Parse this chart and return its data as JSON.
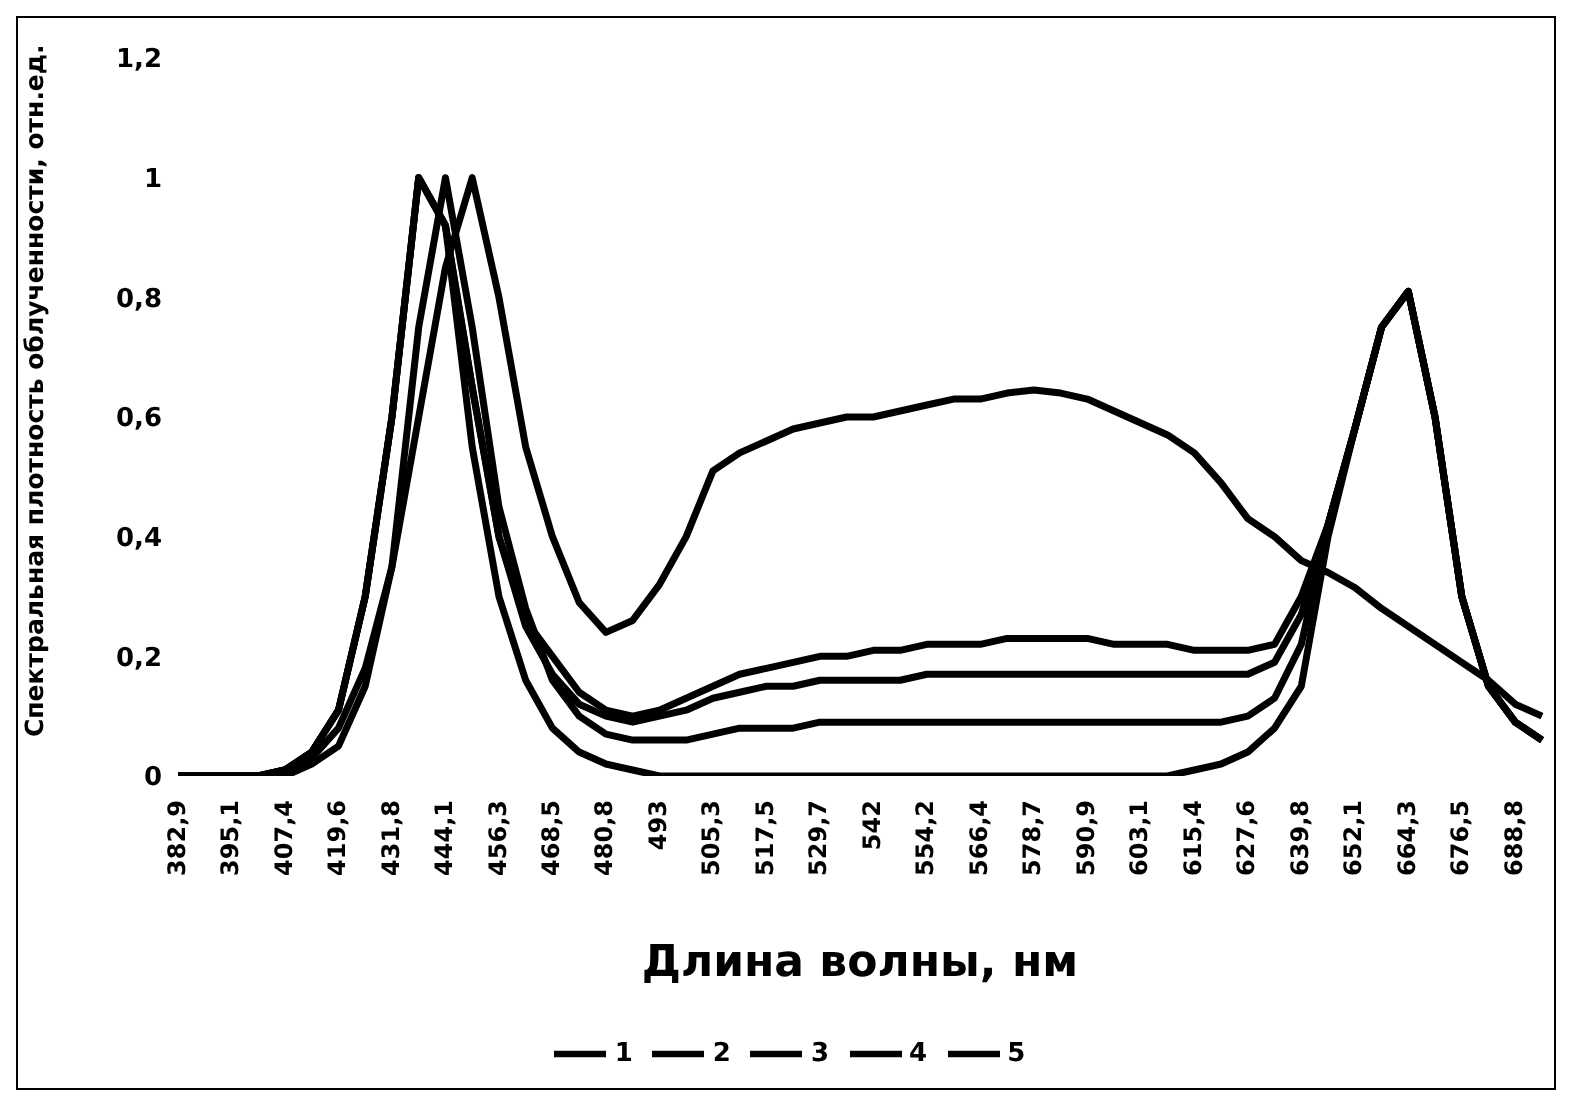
{
  "chart_data": {
    "type": "line",
    "xlabel": "Длина волны, нм",
    "ylabel": "Спектральная плотность облученности, отн.ед.",
    "categories": [
      "382,9",
      null,
      "395,1",
      null,
      "407,4",
      null,
      "419,6",
      null,
      "431,8",
      null,
      "444,1",
      null,
      "456,3",
      null,
      "468,5",
      null,
      "480,8",
      null,
      "493",
      null,
      "505,3",
      null,
      "517,5",
      null,
      "529,7",
      null,
      "542",
      null,
      "554,2",
      null,
      "566,4",
      null,
      "578,7",
      null,
      "590,9",
      null,
      "603,1",
      null,
      "615,4",
      null,
      "627,6",
      null,
      "639,8",
      null,
      "652,1",
      null,
      "664,3",
      null,
      "676,5",
      null,
      "688,8",
      null
    ],
    "series": [
      {
        "name": "1",
        "color": "#000000",
        "values": [
          0,
          0,
          0,
          0,
          0.01,
          0.04,
          0.11,
          0.3,
          0.6,
          1.0,
          0.92,
          0.65,
          0.4,
          0.26,
          0.2,
          0.14,
          0.11,
          0.1,
          0.11,
          0.13,
          0.15,
          0.17,
          0.18,
          0.19,
          0.2,
          0.2,
          0.21,
          0.21,
          0.22,
          0.22,
          0.22,
          0.23,
          0.23,
          0.23,
          0.23,
          0.22,
          0.22,
          0.22,
          0.21,
          0.21,
          0.21,
          0.22,
          0.3,
          0.42,
          0.58,
          0.75,
          0.81,
          0.6,
          0.3,
          0.15,
          0.09,
          0.06
        ]
      },
      {
        "name": "2",
        "color": "#000000",
        "values": [
          0,
          0,
          0,
          0,
          0.01,
          0.04,
          0.11,
          0.3,
          0.6,
          1.0,
          0.92,
          0.65,
          0.4,
          0.25,
          0.17,
          0.12,
          0.1,
          0.09,
          0.1,
          0.11,
          0.13,
          0.14,
          0.15,
          0.15,
          0.16,
          0.16,
          0.16,
          0.16,
          0.17,
          0.17,
          0.17,
          0.17,
          0.17,
          0.17,
          0.17,
          0.17,
          0.17,
          0.17,
          0.17,
          0.17,
          0.17,
          0.19,
          0.27,
          0.42,
          0.58,
          0.75,
          0.81,
          0.6,
          0.3,
          0.15,
          0.09,
          0.06
        ]
      },
      {
        "name": "3",
        "color": "#000000",
        "values": [
          0,
          0,
          0,
          0,
          0,
          0.02,
          0.05,
          0.15,
          0.35,
          0.75,
          1.0,
          0.75,
          0.45,
          0.28,
          0.16,
          0.1,
          0.07,
          0.06,
          0.06,
          0.06,
          0.07,
          0.08,
          0.08,
          0.08,
          0.09,
          0.09,
          0.09,
          0.09,
          0.09,
          0.09,
          0.09,
          0.09,
          0.09,
          0.09,
          0.09,
          0.09,
          0.09,
          0.09,
          0.09,
          0.09,
          0.1,
          0.13,
          0.22,
          0.42,
          0.58,
          0.75,
          0.81,
          0.6,
          0.3,
          0.15,
          0.09,
          0.06
        ]
      },
      {
        "name": "4",
        "color": "#000000",
        "values": [
          0,
          0,
          0,
          0,
          0.01,
          0.04,
          0.11,
          0.3,
          0.6,
          1.0,
          0.92,
          0.55,
          0.3,
          0.16,
          0.08,
          0.04,
          0.02,
          0.01,
          0,
          0,
          0,
          0,
          0,
          0,
          0,
          0,
          0,
          0,
          0,
          0,
          0,
          0,
          0,
          0,
          0,
          0,
          0,
          0,
          0.01,
          0.02,
          0.04,
          0.08,
          0.15,
          0.4,
          0.58,
          0.75,
          0.81,
          0.6,
          0.3,
          0.15,
          0.09,
          0.06
        ]
      },
      {
        "name": "5",
        "color": "#000000",
        "values": [
          0,
          0,
          0,
          0,
          0.01,
          0.03,
          0.08,
          0.18,
          0.35,
          0.6,
          0.85,
          1.0,
          0.8,
          0.55,
          0.4,
          0.29,
          0.24,
          0.26,
          0.32,
          0.4,
          0.51,
          0.54,
          0.56,
          0.58,
          0.59,
          0.6,
          0.6,
          0.61,
          0.62,
          0.63,
          0.63,
          0.64,
          0.645,
          0.64,
          0.63,
          0.61,
          0.59,
          0.57,
          0.54,
          0.49,
          0.43,
          0.4,
          0.36,
          0.34,
          0.315,
          0.28,
          0.25,
          0.22,
          0.19,
          0.16,
          0.12,
          0.1
        ]
      }
    ],
    "ylim": [
      0,
      1.2
    ],
    "yticks": [
      0,
      {
        "value": 0.2,
        "label": "0,2"
      },
      {
        "value": 0.4,
        "label": "0,4"
      },
      {
        "value": 0.6,
        "label": "0,6"
      },
      {
        "value": 0.8,
        "label": "0,8"
      },
      1,
      {
        "value": 1.2,
        "label": "1,2"
      }
    ],
    "grid": false,
    "legend": "bottom",
    "marker": "none",
    "line_style": "solid"
  }
}
